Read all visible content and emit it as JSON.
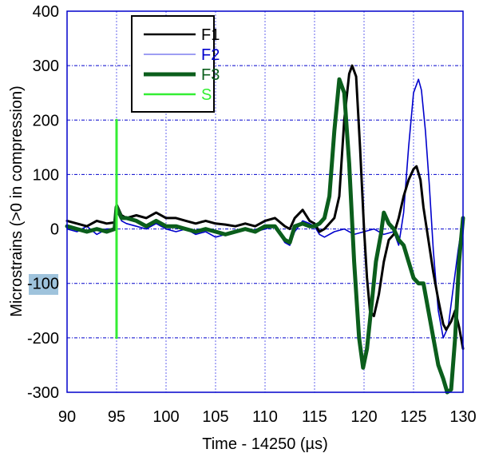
{
  "chart_data": {
    "type": "line",
    "title": "",
    "xlabel": "Time - 14250 (µs)",
    "ylabel": "Microstrains (>0 in compression)",
    "xlim": [
      90,
      130
    ],
    "ylim": [
      -300,
      400
    ],
    "x_ticks": [
      90,
      95,
      100,
      105,
      110,
      115,
      120,
      125,
      130
    ],
    "y_ticks": [
      400,
      300,
      200,
      100,
      0,
      -100,
      -200,
      -300
    ],
    "grid": true,
    "legend_position": "upper-left-inset",
    "highlighted_tick": "-100",
    "series": [
      {
        "name": "F1",
        "color": "#000000",
        "width": 3,
        "x": [
          90,
          91,
          92,
          93,
          94,
          94.8,
          95,
          95.5,
          96,
          97,
          98,
          99,
          100,
          101,
          102,
          103,
          104,
          105,
          106,
          107,
          108,
          109,
          110,
          111,
          112,
          112.5,
          113,
          113.8,
          114.5,
          115,
          115.5,
          116,
          116.5,
          117,
          117.5,
          118,
          118.5,
          118.8,
          119.2,
          119.6,
          120,
          120.3,
          120.6,
          121,
          121.5,
          122,
          122.5,
          123,
          123.5,
          124,
          124.5,
          125,
          125.3,
          125.7,
          126,
          126.5,
          127,
          127.5,
          128,
          128.3,
          128.8,
          129.2,
          129.6,
          130
        ],
        "y": [
          15,
          10,
          5,
          15,
          10,
          12,
          45,
          25,
          20,
          25,
          20,
          30,
          20,
          20,
          15,
          10,
          15,
          10,
          8,
          5,
          10,
          5,
          15,
          20,
          5,
          0,
          20,
          35,
          15,
          10,
          -5,
          0,
          10,
          20,
          60,
          200,
          285,
          300,
          280,
          150,
          0,
          -90,
          -150,
          -160,
          -120,
          -60,
          -20,
          -10,
          20,
          60,
          90,
          110,
          115,
          90,
          40,
          -20,
          -80,
          -130,
          -175,
          -185,
          -170,
          -150,
          -180,
          -220
        ]
      },
      {
        "name": "F2",
        "color": "#0000cc",
        "width": 1.6,
        "x": [
          90,
          91,
          92,
          93,
          94,
          94.8,
          95,
          95.5,
          96,
          97,
          98,
          99,
          100,
          101,
          102,
          103,
          104,
          105,
          106,
          107,
          108,
          109,
          110,
          111,
          112,
          112.5,
          113,
          113.8,
          114.5,
          115,
          115.5,
          116,
          117,
          118,
          119,
          120,
          121,
          122,
          123,
          123.5,
          124,
          124.5,
          125,
          125.5,
          125.8,
          126.2,
          126.6,
          127,
          127.5,
          128,
          128.5,
          129,
          129.5,
          130
        ],
        "y": [
          0,
          -5,
          5,
          -10,
          0,
          0,
          40,
          15,
          10,
          5,
          0,
          10,
          0,
          -5,
          0,
          -10,
          -5,
          -15,
          -10,
          -5,
          0,
          -5,
          0,
          5,
          -25,
          -30,
          -5,
          15,
          10,
          5,
          -10,
          -15,
          -5,
          0,
          -10,
          -5,
          0,
          -10,
          -5,
          -30,
          30,
          150,
          250,
          275,
          255,
          180,
          80,
          -40,
          -150,
          -200,
          -180,
          -110,
          -40,
          20
        ]
      },
      {
        "name": "F3",
        "color": "#0b5e1c",
        "width": 5,
        "x": [
          90,
          91,
          92,
          93,
          94,
          94.8,
          95,
          95.5,
          96,
          97,
          98,
          99,
          100,
          101,
          102,
          103,
          104,
          105,
          106,
          107,
          108,
          109,
          110,
          111,
          112,
          112.5,
          113,
          113.8,
          114.5,
          115,
          115.5,
          116,
          116.5,
          117,
          117.5,
          118,
          118.5,
          119,
          119.5,
          119.9,
          120.3,
          120.7,
          121.2,
          121.7,
          122,
          122.5,
          123,
          123.5,
          124,
          124.5,
          125,
          125.5,
          126,
          126.5,
          127,
          127.5,
          128,
          128.4,
          128.8,
          129.2,
          129.6,
          130
        ],
        "y": [
          5,
          0,
          -5,
          0,
          -5,
          0,
          40,
          20,
          20,
          15,
          5,
          15,
          5,
          5,
          0,
          -5,
          0,
          -5,
          -10,
          -5,
          0,
          -5,
          5,
          5,
          -20,
          -25,
          5,
          10,
          5,
          5,
          10,
          20,
          60,
          180,
          275,
          250,
          120,
          -60,
          -200,
          -255,
          -220,
          -150,
          -60,
          -10,
          30,
          10,
          0,
          -20,
          -30,
          -60,
          -90,
          -100,
          -100,
          -150,
          -200,
          -250,
          -275,
          -300,
          -295,
          -200,
          -60,
          20
        ]
      },
      {
        "name": "S",
        "color": "#33ee33",
        "width": 3,
        "x": [
          95,
          95
        ],
        "y": [
          -200,
          200
        ]
      }
    ]
  },
  "axes": {
    "xlabel": "Time - 14250 (µs)",
    "ylabel": "Microstrains (>0 in compression)",
    "x_tick_labels": [
      "90",
      "95",
      "100",
      "105",
      "110",
      "115",
      "120",
      "125",
      "130"
    ],
    "y_tick_labels": [
      "400",
      "300",
      "200",
      "100",
      "0",
      "-100",
      "-200",
      "-300"
    ]
  },
  "legend": {
    "items": [
      {
        "label": "F1",
        "color": "#000000",
        "text_color": "#000000"
      },
      {
        "label": "F2",
        "color": "#7f7fef",
        "text_color": "#0000cc"
      },
      {
        "label": "F3",
        "color": "#0b5e1c",
        "text_color": "#0b5e1c"
      },
      {
        "label": "S",
        "color": "#33ee33",
        "text_color": "#33ee33"
      }
    ]
  },
  "colors": {
    "frame": "#0000cc",
    "grid": "#0000cc"
  }
}
